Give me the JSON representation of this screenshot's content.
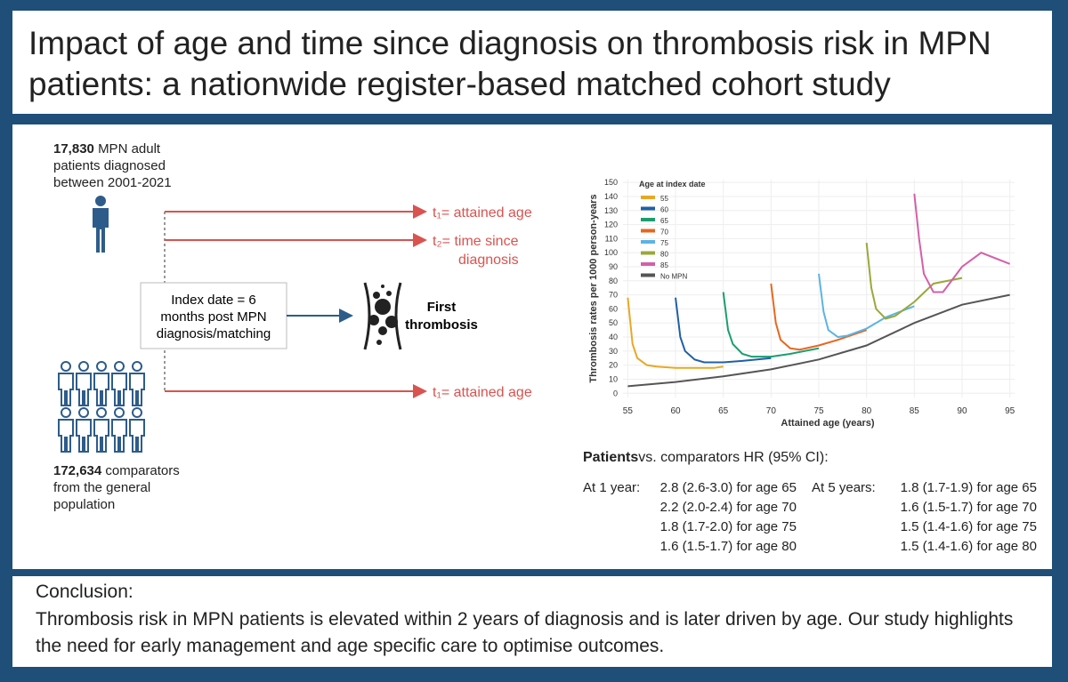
{
  "header": {
    "title": "Impact of age and time since diagnosis on thrombosis risk in MPN patients: a nationwide register-based matched cohort study"
  },
  "cohort": {
    "patients_count": "17,830",
    "patients_text": "MPN adult patients diagnosed between 2001-2021",
    "comparators_count": "172,634",
    "comparators_text": "comparators from the general population"
  },
  "timescales": {
    "t1": "t₁= attained age",
    "t2_line1": "t₂= time since",
    "t2_line2": "diagnosis",
    "t1_comparators": "t₁= attained age"
  },
  "index_box": [
    "Index date = 6",
    "months post MPN",
    "diagnosis/matching"
  ],
  "outcome": [
    "First",
    "thrombosis"
  ],
  "chart_data": {
    "type": "line",
    "ylabel": "Thrombosis rates per 1000 person-years",
    "xlabel": "Attained age (years)",
    "legend_title": "Age at index date",
    "xlim": [
      54.5,
      95.5
    ],
    "ylim": [
      -3,
      152
    ],
    "xticks": [
      55,
      60,
      65,
      70,
      75,
      80,
      85,
      90,
      95
    ],
    "yticks": [
      0,
      10,
      20,
      30,
      40,
      50,
      60,
      70,
      80,
      90,
      100,
      110,
      120,
      130,
      140,
      150
    ],
    "series": [
      {
        "name": "55",
        "color": "#e8a825",
        "x": [
          55,
          55.5,
          56,
          57,
          58,
          60,
          62,
          64,
          65
        ],
        "values": [
          68,
          35,
          25,
          20,
          19,
          18,
          18,
          18,
          19
        ]
      },
      {
        "name": "60",
        "color": "#1f5fa8",
        "x": [
          60,
          60.5,
          61,
          62,
          63,
          65,
          67,
          70
        ],
        "values": [
          68,
          40,
          30,
          24,
          22,
          22,
          23,
          25
        ]
      },
      {
        "name": "65",
        "color": "#1a9e6e",
        "x": [
          65,
          65.5,
          66,
          67,
          68,
          70,
          72,
          75
        ],
        "values": [
          72,
          45,
          35,
          28,
          26,
          26,
          28,
          32
        ]
      },
      {
        "name": "70",
        "color": "#e8661f",
        "x": [
          70,
          70.5,
          71,
          72,
          73,
          75,
          77,
          80
        ],
        "values": [
          78,
          50,
          38,
          32,
          31,
          34,
          38,
          45
        ]
      },
      {
        "name": "75",
        "color": "#5bb4e5",
        "x": [
          75,
          75.5,
          76,
          77,
          78,
          80,
          82,
          85
        ],
        "values": [
          85,
          58,
          45,
          40,
          41,
          46,
          54,
          62
        ]
      },
      {
        "name": "80",
        "color": "#9aa83a",
        "x": [
          80,
          80.5,
          81,
          82,
          83,
          85,
          87,
          90
        ],
        "values": [
          107,
          75,
          60,
          53,
          55,
          65,
          78,
          82
        ]
      },
      {
        "name": "85",
        "color": "#d45fa8",
        "x": [
          85,
          85.5,
          86,
          87,
          88,
          90,
          92,
          95
        ],
        "values": [
          142,
          110,
          85,
          72,
          72,
          90,
          100,
          92
        ]
      },
      {
        "name": "No MPN",
        "color": "#555555",
        "x": [
          55,
          60,
          65,
          70,
          75,
          80,
          85,
          90,
          95
        ],
        "values": [
          5,
          8,
          12,
          17,
          24,
          34,
          50,
          63,
          70
        ]
      }
    ]
  },
  "hr": {
    "heading_bold": "Patients",
    "heading_rest": "vs. comparators HR (95% CI):",
    "columns": [
      {
        "label": "At 1 year:",
        "rows": [
          "2.8 (2.6-3.0) for age 65",
          "2.2 (2.0-2.4) for age 70",
          "1.8 (1.7-2.0) for age 75",
          "1.6 (1.5-1.7) for age 80"
        ]
      },
      {
        "label": "At 5 years:",
        "rows": [
          "1.8 (1.7-1.9) for age 65",
          "1.6 (1.5-1.7) for age 70",
          "1.5 (1.4-1.6) for age 75",
          "1.5 (1.4-1.6) for age 80"
        ]
      }
    ]
  },
  "conclusion": {
    "heading": "Conclusion:",
    "text": "Thrombosis risk in MPN patients is elevated within 2 years of diagnosis and is later driven by age. Our study highlights the need for early management and age specific care to optimise outcomes."
  }
}
